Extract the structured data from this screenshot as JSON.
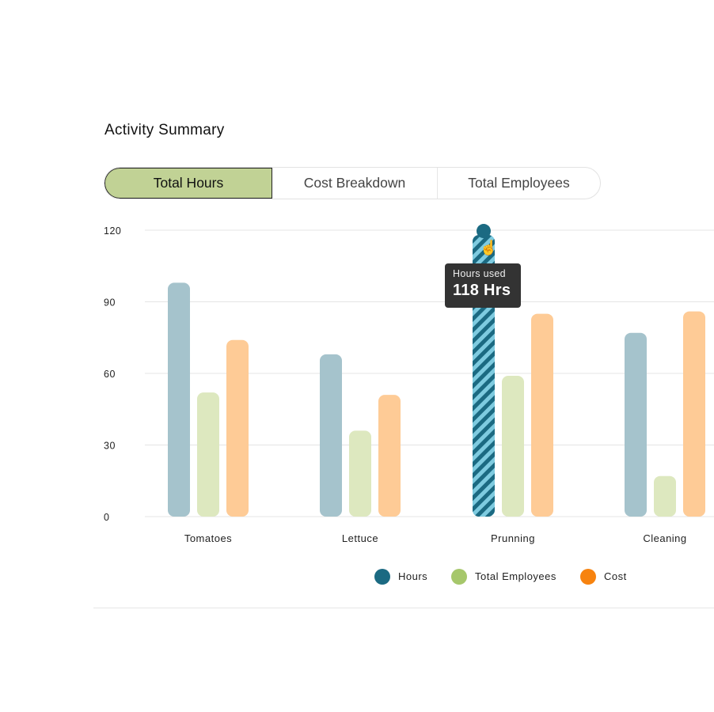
{
  "card": {
    "title": "Activity Summary"
  },
  "tabs": [
    {
      "label": "Total Hours",
      "active": true
    },
    {
      "label": "Cost Breakdown",
      "active": false
    },
    {
      "label": "Total Employees",
      "active": false
    }
  ],
  "tooltip": {
    "label": "Hours used",
    "value": "118 Hrs"
  },
  "chart_data": {
    "type": "bar",
    "categories": [
      "Tomatoes",
      "Lettuce",
      "Prunning",
      "Cleaning"
    ],
    "series": [
      {
        "name": "Hours",
        "values": [
          98,
          68,
          118,
          77
        ],
        "color": "#1b6a82",
        "bar_color": "#a5c3cc"
      },
      {
        "name": "Total Employees",
        "values": [
          52,
          36,
          59,
          17
        ],
        "color": "#a6c76b",
        "bar_color": "#dde8bf"
      },
      {
        "name": "Cost",
        "values": [
          74,
          51,
          85,
          86
        ],
        "color": "#f7830f",
        "bar_color": "#fecb96"
      }
    ],
    "highlighted": {
      "series": "Hours",
      "category": "Prunning"
    },
    "yticks": [
      0,
      30,
      60,
      90,
      120
    ],
    "ylim": [
      0,
      120
    ],
    "grid": true,
    "legend": "bottom"
  }
}
